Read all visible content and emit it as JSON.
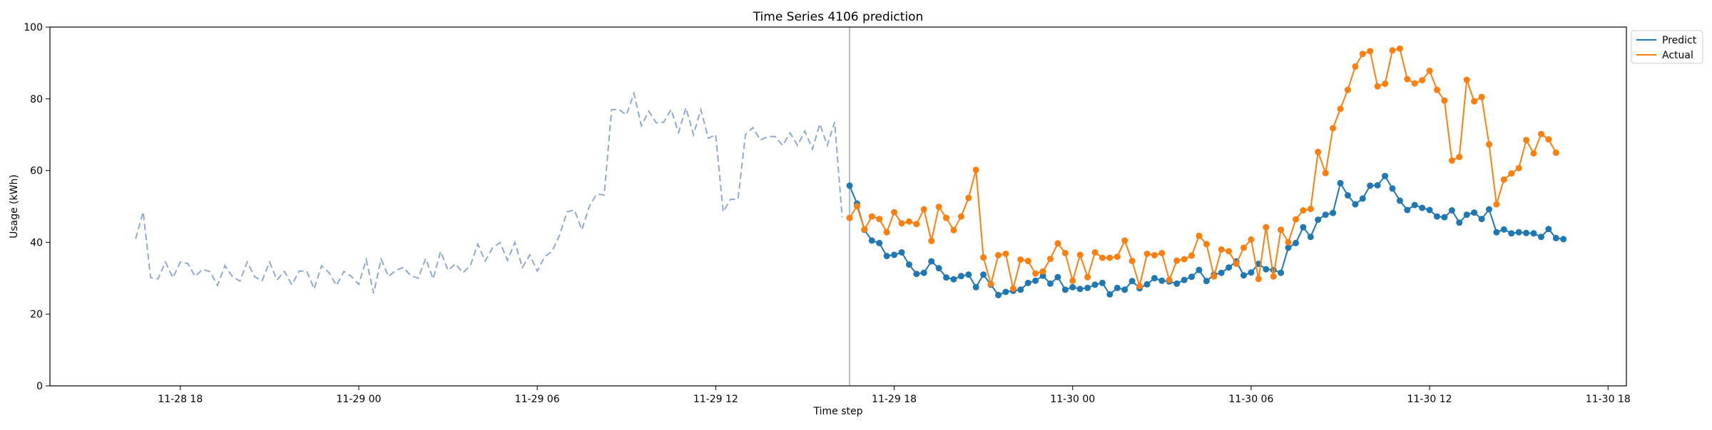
{
  "chart_data": {
    "type": "line",
    "title": "Time Series 4106 prediction",
    "xlabel": "Time step",
    "ylabel": "Usage (kWh)",
    "ylim": [
      0,
      100
    ],
    "yticks": [
      0,
      20,
      40,
      60,
      80,
      100
    ],
    "xlim": [
      "2024-11-28 13:37",
      "2024-11-30 18:37"
    ],
    "xticks": [
      {
        "t": "2024-11-28 18:00",
        "label": "11-28 18"
      },
      {
        "t": "2024-11-29 00:00",
        "label": "11-29 00"
      },
      {
        "t": "2024-11-29 06:00",
        "label": "11-29 06"
      },
      {
        "t": "2024-11-29 12:00",
        "label": "11-29 12"
      },
      {
        "t": "2024-11-29 18:00",
        "label": "11-29 18"
      },
      {
        "t": "2024-11-30 00:00",
        "label": "11-30 00"
      },
      {
        "t": "2024-11-30 06:00",
        "label": "11-30 06"
      },
      {
        "t": "2024-11-30 12:00",
        "label": "11-30 12"
      },
      {
        "t": "2024-11-30 18:00",
        "label": "11-30 18"
      }
    ],
    "legend": "upper-right-outside",
    "grid": false,
    "forecast_start": "2024-11-29 16:30",
    "history": {
      "start": "2024-11-28 16:30",
      "step_minutes": 15,
      "color": "#8eaad0",
      "style": "dashed",
      "values": [
        41,
        48.5,
        30.2,
        29.8,
        34.5,
        30.1,
        34.5,
        34.1,
        30.5,
        32.5,
        31.8,
        28,
        33.5,
        30.5,
        29.2,
        34.5,
        30.4,
        29.3,
        34.5,
        29.5,
        31.9,
        28.2,
        32,
        32,
        27,
        33.5,
        31.5,
        28,
        31.9,
        30.5,
        28.3,
        35.2,
        25.8,
        35.3,
        30.5,
        32.2,
        33,
        30.7,
        30,
        35.5,
        29.8,
        37.5,
        32.2,
        34,
        31.5,
        33.5,
        39.5,
        34.8,
        38.5,
        39.9,
        35,
        40,
        33,
        36.5,
        32,
        36,
        37.5,
        42,
        48.5,
        49,
        43.5,
        50,
        53.5,
        53.2,
        77,
        77,
        75.5,
        81.5,
        72.5,
        76.5,
        73.3,
        73.5,
        77,
        70.6,
        77.5,
        70,
        77,
        69,
        70,
        48.5,
        52,
        52,
        70,
        72,
        68.5,
        69.5,
        69.5,
        67,
        70.5,
        67,
        71,
        66,
        73,
        67,
        73.5,
        47
      ]
    },
    "series": [
      {
        "name": "Predict",
        "color": "#1f77b4",
        "start": "2024-11-29 16:30",
        "step_minutes": 15,
        "values": [
          55.8,
          50.8,
          43.5,
          40.5,
          39.8,
          36.2,
          36.5,
          37.2,
          33.8,
          31.2,
          31.5,
          34.7,
          32.8,
          30.2,
          29.7,
          30.6,
          31,
          27.5,
          31,
          28.2,
          25.3,
          26.2,
          26.5,
          26.8,
          28.7,
          29.3,
          30.7,
          28.5,
          30.3,
          26.8,
          27.5,
          27,
          27.3,
          28.2,
          28.7,
          25.5,
          27.3,
          26.8,
          29.2,
          27.2,
          28.3,
          30,
          29.3,
          29.1,
          28.5,
          29.5,
          30.4,
          32.3,
          29.2,
          31,
          31.5,
          33,
          34.7,
          30.8,
          31.6,
          34,
          32.5,
          32.3,
          31.5,
          38.5,
          39.8,
          44.2,
          41.5,
          46.3,
          47.7,
          48.2,
          56.5,
          53.1,
          50.6,
          52.2,
          55.8,
          55.9,
          58.5,
          55,
          51.6,
          49,
          50.4,
          49.6,
          49,
          47.2,
          47,
          48.9,
          45.5,
          47.7,
          48.3,
          46.5,
          49.2,
          42.8,
          43.6,
          42.5,
          42.8,
          42.6,
          42.5,
          41.5,
          43.7,
          41.2,
          40.9
        ]
      },
      {
        "name": "Actual",
        "color": "#ff7f0e",
        "start": "2024-11-29 16:30",
        "step_minutes": 15,
        "values": [
          46.8,
          50.1,
          43.6,
          47.2,
          46.5,
          42.8,
          48.4,
          45.3,
          45.8,
          45.1,
          49.2,
          40.4,
          49.9,
          46.8,
          43.4,
          47.2,
          52.4,
          60.2,
          35.8,
          28.4,
          36.4,
          36.8,
          27.1,
          35.2,
          34.8,
          31.3,
          31.9,
          35.4,
          39.7,
          37,
          29.3,
          36.5,
          30.3,
          37.2,
          35.7,
          35.7,
          36,
          40.5,
          34.8,
          27.8,
          36.8,
          36.4,
          37,
          29.5,
          34.9,
          35.3,
          36.3,
          41.8,
          39.5,
          30.5,
          38,
          37.5,
          34,
          38.5,
          40.8,
          29.8,
          44.2,
          30.5,
          43.5,
          40,
          46.4,
          48.9,
          49.3,
          65.2,
          59.3,
          71.8,
          77.2,
          82.5,
          89,
          92.5,
          93.3,
          83.5,
          84.2,
          93.5,
          94,
          85.5,
          84.3,
          85.2,
          87.8,
          82.5,
          79.5,
          62.8,
          63.8,
          85.3,
          79.3,
          80.5,
          67.3,
          50.6,
          57.5,
          59.2,
          60.7,
          68.5,
          64.8,
          70.2,
          68.7,
          65
        ]
      }
    ]
  }
}
